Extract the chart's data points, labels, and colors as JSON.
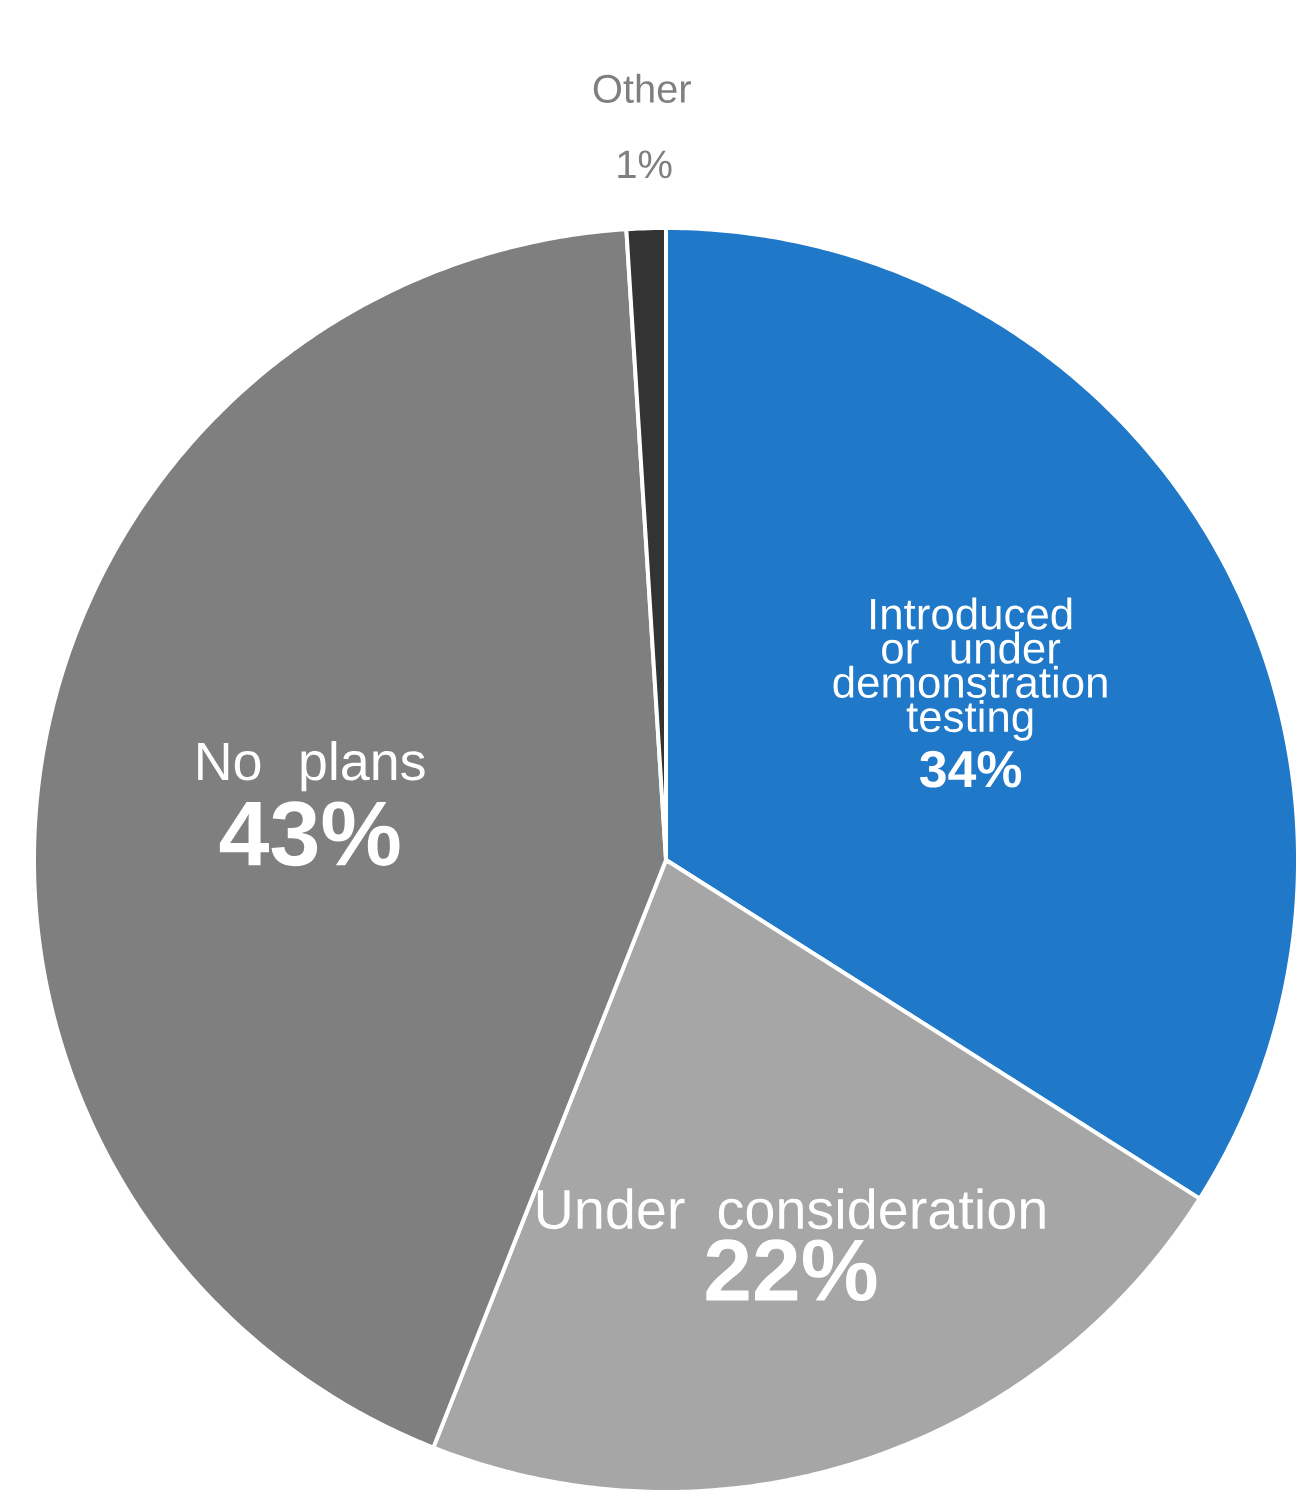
{
  "chart_data": {
    "type": "pie",
    "categories": [
      "Introduced or under demonstration testing",
      "Under consideration",
      "No plans",
      "Other"
    ],
    "values": [
      34,
      22,
      43,
      1
    ],
    "value_labels": [
      "34%",
      "22%",
      "43%",
      "1%"
    ],
    "colors": [
      "#1f78c8",
      "#a6a6a6",
      "#7f7f7f",
      "#333333"
    ]
  }
}
